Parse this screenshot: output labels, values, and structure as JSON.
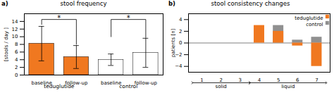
{
  "chart_data": [
    {
      "type": "bar",
      "panel_label": "a)",
      "title": "stool frequency",
      "ylabel": "[stools / day ]",
      "categories": [
        "baseline",
        "follow-up",
        "baseline",
        "follow-up"
      ],
      "groups": [
        "teduglutide",
        "teduglutide",
        "control",
        "control"
      ],
      "values": [
        8.2,
        4.7,
        4.0,
        5.8
      ],
      "errors": [
        4.5,
        3.0,
        1.5,
        3.8
      ],
      "colors": [
        "#f07820",
        "#f07820",
        "#ffffff",
        "#ffffff"
      ],
      "ylim": [
        0,
        16
      ],
      "yticks": [
        0,
        2,
        4,
        6,
        8,
        10,
        12,
        14
      ],
      "annotations": [
        {
          "text": "*",
          "categories": [
            0,
            1
          ],
          "y": 14.5,
          "y_ends": [
            13.2,
            8.0
          ]
        },
        {
          "text": "*",
          "categories": [
            2,
            3
          ],
          "y": 14.5,
          "y_ends": [
            10.0,
            9.8
          ]
        }
      ]
    },
    {
      "type": "bar",
      "panel_label": "b)",
      "title": "stool consistency changes",
      "ylabel": "patients [n]",
      "x": [
        1,
        2,
        3,
        4,
        5,
        6,
        7
      ],
      "xlim": [
        0.3,
        7.7
      ],
      "xticks": [
        1,
        2,
        3,
        4,
        5,
        6,
        7
      ],
      "series": [
        {
          "name": "teduglutide",
          "color": "#f07820",
          "values": [
            0,
            0,
            0,
            3,
            2,
            -0.5,
            -4
          ]
        },
        {
          "name": "control",
          "color": "#909090",
          "values": [
            0,
            0,
            0,
            0,
            3,
            0.5,
            1
          ]
        }
      ],
      "ylim": [
        -5,
        5
      ],
      "yticks": [
        -4,
        -2,
        0,
        2,
        4
      ],
      "legend": "upper right",
      "annotations": [
        {
          "text": "solid",
          "x": [
            0.5,
            3.5
          ]
        },
        {
          "text": "liquid",
          "x": [
            3.5,
            7.5
          ]
        }
      ]
    }
  ]
}
